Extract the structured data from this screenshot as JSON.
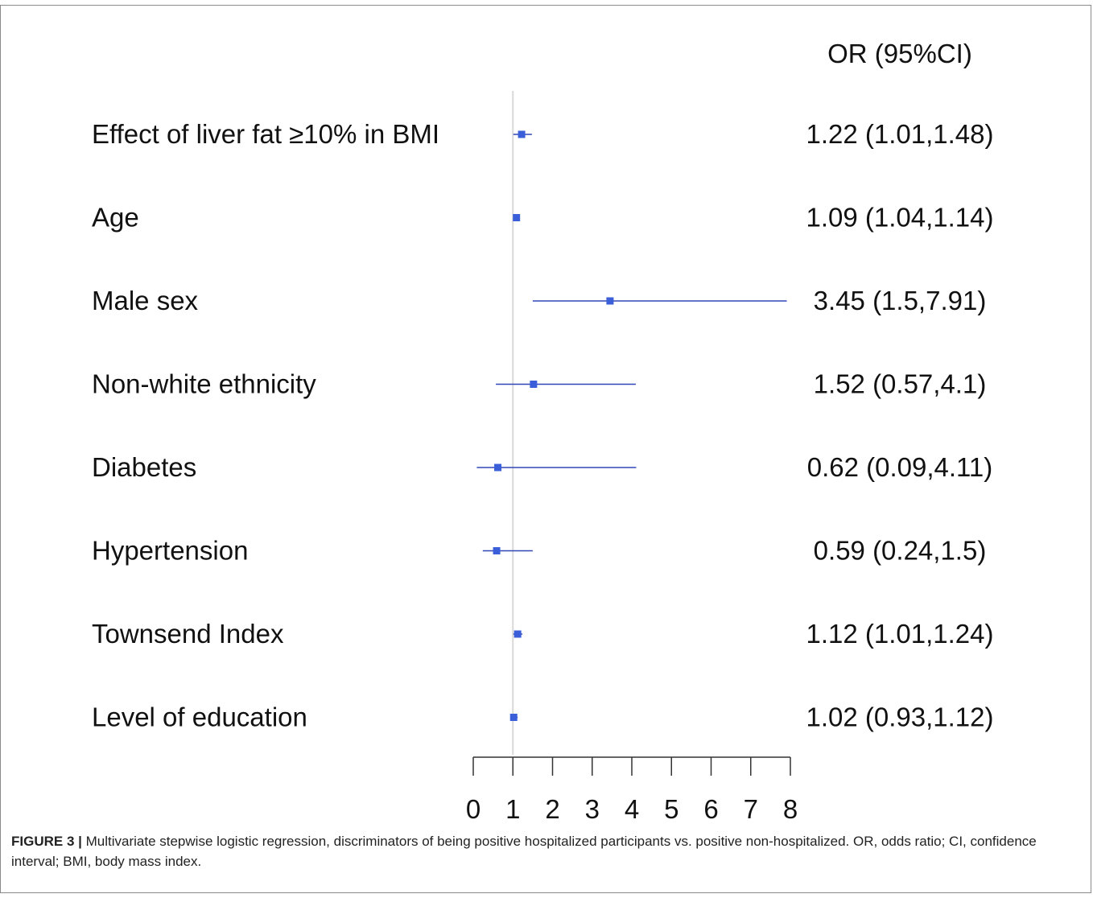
{
  "chart_data": {
    "type": "forest",
    "column_header": "OR (95%CI)",
    "rows": [
      {
        "label": "Effect of liver fat ≥10% in BMI",
        "or": 1.22,
        "ci_low": 1.01,
        "ci_high": 1.48,
        "text": "1.22 (1.01,1.48)"
      },
      {
        "label": "Age",
        "or": 1.09,
        "ci_low": 1.04,
        "ci_high": 1.14,
        "text": "1.09 (1.04,1.14)"
      },
      {
        "label": "Male sex",
        "or": 3.45,
        "ci_low": 1.5,
        "ci_high": 7.91,
        "text": "3.45 (1.5,7.91)"
      },
      {
        "label": "Non-white ethnicity",
        "or": 1.52,
        "ci_low": 0.57,
        "ci_high": 4.1,
        "text": "1.52 (0.57,4.1)"
      },
      {
        "label": "Diabetes",
        "or": 0.62,
        "ci_low": 0.09,
        "ci_high": 4.11,
        "text": "0.62 (0.09,4.11)"
      },
      {
        "label": "Hypertension",
        "or": 0.59,
        "ci_low": 0.24,
        "ci_high": 1.5,
        "text": "0.59 (0.24,1.5)"
      },
      {
        "label": "Townsend Index",
        "or": 1.12,
        "ci_low": 1.01,
        "ci_high": 1.24,
        "text": "1.12 (1.01,1.24)"
      },
      {
        "label": "Level of education",
        "or": 1.02,
        "ci_low": 0.93,
        "ci_high": 1.12,
        "text": "1.02 (0.93,1.12)"
      }
    ],
    "reference_line": 1,
    "xlim": [
      0,
      8
    ],
    "x_ticks": [
      0,
      1,
      2,
      3,
      4,
      5,
      6,
      7,
      8
    ],
    "colors": {
      "marker": "#3a5fd9",
      "ci_line": "#3046b8",
      "reference": "#d9d9d9",
      "axis": "#333333",
      "text": "#111111"
    }
  },
  "caption": {
    "figure_label": "FIGURE 3 |",
    "text": " Multivariate stepwise logistic regression, discriminators of being positive hospitalized participants vs. positive non-hospitalized. OR, odds ratio; CI, confidence interval; BMI, body mass index."
  }
}
